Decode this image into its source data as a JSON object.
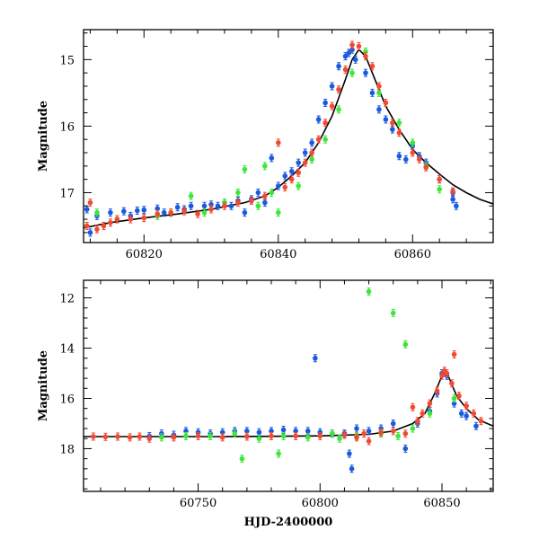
{
  "chart_data": [
    {
      "type": "scatter",
      "xlabel": "",
      "ylabel": "Magnitude",
      "xlim": [
        60811,
        60872
      ],
      "ylim": [
        17.75,
        14.55
      ],
      "y_inverted": true,
      "x_ticks": [
        60820,
        60840,
        60860
      ],
      "y_ticks": [
        15,
        16,
        17
      ],
      "colors": {
        "blue": "#1a5adf",
        "green": "#3ce63c",
        "red": "#f24a32",
        "model": "#000000"
      },
      "model_curve": {
        "x": [
          60811,
          60815,
          60820,
          60825,
          60830,
          60835,
          60838,
          60840,
          60842,
          60844,
          60846,
          60848,
          60850,
          60851,
          60852,
          60853,
          60854,
          60856,
          60858,
          60860,
          60862,
          60864,
          60866,
          60868,
          60870,
          60872
        ],
        "y": [
          17.53,
          17.45,
          17.38,
          17.32,
          17.25,
          17.15,
          17.05,
          16.92,
          16.75,
          16.55,
          16.25,
          15.85,
          15.3,
          15.0,
          14.85,
          14.95,
          15.2,
          15.7,
          16.05,
          16.35,
          16.55,
          16.72,
          16.88,
          17.0,
          17.1,
          17.17
        ]
      },
      "series": [
        {
          "color": "blue",
          "x": [
            60811.5,
            60812,
            60813,
            60815,
            60817,
            60818,
            60819,
            60820,
            60822,
            60823,
            60825,
            60826,
            60827,
            60829,
            60830,
            60831,
            60832,
            60833,
            60834,
            60835,
            60836,
            60837,
            60838,
            60839,
            60840,
            60841,
            60842,
            60843,
            60844,
            60845,
            60846,
            60847,
            60848,
            60849,
            60850,
            60850.5,
            60851,
            60851.5,
            60853,
            60854,
            60855,
            60856,
            60857,
            60858,
            60859,
            60860,
            60861,
            60862,
            60864,
            60866,
            60866.5,
            60866
          ],
          "y": [
            17.25,
            17.6,
            17.35,
            17.3,
            17.28,
            17.35,
            17.27,
            17.26,
            17.24,
            17.3,
            17.22,
            17.25,
            17.2,
            17.2,
            17.18,
            17.2,
            17.15,
            17.2,
            17.12,
            17.3,
            17.1,
            17.0,
            17.15,
            16.48,
            16.9,
            16.75,
            16.68,
            16.55,
            16.4,
            16.25,
            15.9,
            15.65,
            15.4,
            15.1,
            14.95,
            14.9,
            14.85,
            15.0,
            15.2,
            15.5,
            15.75,
            15.9,
            16.05,
            16.45,
            16.5,
            16.3,
            16.45,
            16.55,
            16.8,
            17.0,
            17.2,
            17.1
          ]
        },
        {
          "color": "green",
          "x": [
            60813,
            60816,
            60822,
            60824,
            60827,
            60829,
            60832,
            60834,
            60835,
            60837,
            60838,
            60839,
            60840,
            60843,
            60845,
            60847,
            60849,
            60851,
            60853,
            60855,
            60858,
            60860,
            60862,
            60864
          ],
          "y": [
            17.3,
            17.4,
            17.35,
            17.3,
            17.05,
            17.3,
            17.15,
            17.0,
            16.65,
            17.2,
            16.6,
            17.0,
            17.3,
            16.9,
            16.5,
            16.2,
            15.75,
            15.2,
            14.88,
            15.5,
            15.95,
            16.25,
            16.6,
            16.95
          ]
        },
        {
          "color": "red",
          "x": [
            60811.5,
            60812,
            60813,
            60814,
            60815,
            60816,
            60818,
            60820,
            60822,
            60824,
            60826,
            60828,
            60830,
            60832,
            60834,
            60836,
            60838,
            60840,
            60841,
            60842,
            60843,
            60844,
            60845,
            60846,
            60847,
            60848,
            60849,
            60850,
            60851,
            60852,
            60853,
            60854,
            60855,
            60856,
            60857,
            60858,
            60860,
            60861,
            60862,
            60864,
            60866
          ],
          "y": [
            17.5,
            17.15,
            17.55,
            17.5,
            17.45,
            17.4,
            17.4,
            17.38,
            17.32,
            17.3,
            17.28,
            17.32,
            17.25,
            17.2,
            17.15,
            17.12,
            17.05,
            16.25,
            16.92,
            16.8,
            16.7,
            16.55,
            16.4,
            16.2,
            15.95,
            15.7,
            15.45,
            15.15,
            14.78,
            14.8,
            14.95,
            15.1,
            15.4,
            15.65,
            15.95,
            16.1,
            16.4,
            16.5,
            16.62,
            16.8,
            16.98
          ]
        }
      ]
    },
    {
      "type": "scatter",
      "xlabel": "HJD-2400000",
      "ylabel": "Magnitude",
      "xlim": [
        60703,
        60871
      ],
      "ylim": [
        19.7,
        11.3
      ],
      "y_inverted": true,
      "x_ticks": [
        60750,
        60800,
        60850
      ],
      "y_ticks": [
        12,
        14,
        16,
        18
      ],
      "colors": {
        "blue": "#1a5adf",
        "green": "#3ce63c",
        "red": "#f24a32",
        "model": "#000000"
      },
      "model_curve": {
        "x": [
          60703,
          60720,
          60740,
          60760,
          60780,
          60800,
          60820,
          60830,
          60838,
          60843,
          60847,
          60850,
          60851,
          60853,
          60856,
          60860,
          60865,
          60871
        ],
        "y": [
          17.52,
          17.52,
          17.52,
          17.52,
          17.51,
          17.49,
          17.43,
          17.3,
          17.0,
          16.6,
          15.8,
          15.1,
          14.85,
          15.2,
          15.9,
          16.4,
          16.85,
          17.1
        ]
      },
      "series": [
        {
          "color": "blue",
          "x": [
            60730,
            60735,
            60740,
            60745,
            60750,
            60755,
            60760,
            60765,
            60770,
            60775,
            60780,
            60785,
            60790,
            60795,
            60798,
            60800,
            60805,
            60810,
            60812,
            60813,
            60815,
            60820,
            60825,
            60830,
            60835,
            60840,
            60845,
            60848,
            60850,
            60852,
            60855,
            60858,
            60860,
            60864
          ],
          "y": [
            17.5,
            17.4,
            17.45,
            17.3,
            17.35,
            17.4,
            17.35,
            17.3,
            17.3,
            17.35,
            17.3,
            17.25,
            17.3,
            17.3,
            14.4,
            17.35,
            17.4,
            17.4,
            18.2,
            18.8,
            17.2,
            17.3,
            17.2,
            17.0,
            18.0,
            17.0,
            16.5,
            15.8,
            15.0,
            15.1,
            16.2,
            16.6,
            16.7,
            17.1
          ]
        },
        {
          "color": "green",
          "x": [
            60735,
            60745,
            60755,
            60765,
            60768,
            60775,
            60783,
            60785,
            60795,
            60805,
            60808,
            60815,
            60820,
            60825,
            60830,
            60832,
            60835,
            60838,
            60845,
            60855
          ],
          "y": [
            17.55,
            17.5,
            17.5,
            17.4,
            18.4,
            17.6,
            18.2,
            17.5,
            17.55,
            17.4,
            17.6,
            17.5,
            11.75,
            17.4,
            12.6,
            17.5,
            13.85,
            17.2,
            16.6,
            16.0
          ]
        },
        {
          "color": "red",
          "x": [
            60707,
            60712,
            60717,
            60722,
            60726,
            60730,
            60740,
            60750,
            60760,
            60770,
            60780,
            60790,
            60800,
            60810,
            60815,
            60818,
            60820,
            60825,
            60830,
            60835,
            60838,
            60840,
            60842,
            60845,
            60848,
            60850,
            60851,
            60852,
            60854,
            60855,
            60857,
            60860,
            60863,
            60866
          ],
          "y": [
            17.52,
            17.53,
            17.52,
            17.55,
            17.52,
            17.6,
            17.55,
            17.5,
            17.55,
            17.52,
            17.5,
            17.5,
            17.5,
            17.45,
            17.55,
            17.4,
            17.7,
            17.35,
            17.3,
            17.4,
            16.35,
            16.9,
            16.6,
            16.2,
            15.7,
            15.1,
            14.9,
            15.0,
            15.4,
            14.25,
            15.9,
            16.3,
            16.6,
            16.9
          ]
        }
      ]
    }
  ]
}
